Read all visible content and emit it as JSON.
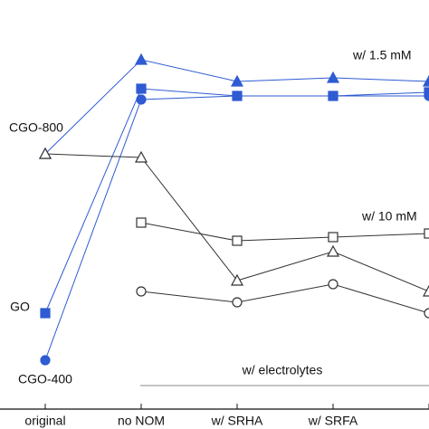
{
  "chart_data": {
    "type": "line",
    "categories": [
      "original",
      "no NOM",
      "w/ SRHA",
      "w/ SRFA",
      null
    ],
    "ylim": [
      0,
      100
    ],
    "series": [
      {
        "color": "#2f5bd3",
        "marker": "triangle",
        "fill": "filled",
        "values": [
          65,
          91,
          85,
          86,
          85
        ]
      },
      {
        "color": "#2f5bd3",
        "marker": "square",
        "fill": "filled",
        "values": [
          21,
          83,
          81,
          81,
          82
        ]
      },
      {
        "color": "#2f5bd3",
        "marker": "circle",
        "fill": "filled",
        "values": [
          8,
          80,
          81,
          81,
          81
        ]
      },
      {
        "color": "#333333",
        "marker": "triangle",
        "fill": "open",
        "values": [
          65,
          64,
          30,
          38,
          27
        ]
      },
      {
        "color": "#333333",
        "marker": "square",
        "fill": "open",
        "values": [
          null,
          46,
          41,
          42,
          43
        ]
      },
      {
        "color": "#333333",
        "marker": "circle",
        "fill": "open",
        "values": [
          null,
          27,
          24,
          29,
          21
        ]
      }
    ],
    "annotations": [
      "CGO-800",
      "GO",
      "CGO-400",
      "w/ 1.5 mM",
      "w/ 10 mM",
      "w/ electrolytes"
    ]
  }
}
